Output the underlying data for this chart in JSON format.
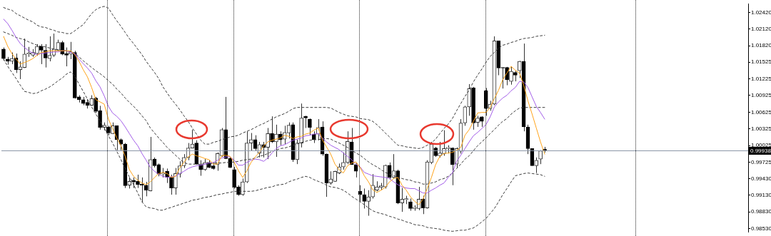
{
  "chart_data": {
    "type": "candlestick",
    "categories": [
      null,
      null,
      null,
      null,
      null,
      null,
      null,
      null,
      null,
      null,
      null,
      null,
      null,
      null,
      null,
      null,
      null,
      null,
      null,
      null,
      null,
      null,
      null,
      null,
      null,
      null,
      null,
      null,
      null,
      null,
      null,
      null,
      null,
      null,
      null,
      null,
      null,
      null,
      null,
      null,
      null,
      null,
      null,
      null,
      null,
      null,
      null,
      null,
      null,
      null,
      null,
      null,
      null,
      null,
      null,
      null,
      null,
      null,
      null,
      null,
      null,
      null,
      null,
      null,
      null,
      null,
      null,
      null,
      null,
      null,
      null,
      null,
      null,
      null,
      null,
      null,
      null,
      null,
      null,
      null,
      null,
      null,
      null,
      null,
      null,
      null,
      null,
      null,
      null,
      null,
      null,
      null,
      null,
      null,
      null,
      null,
      null,
      null,
      null,
      null,
      null,
      null,
      null,
      null,
      null,
      null,
      null,
      null,
      null,
      null,
      null,
      null,
      null,
      null,
      null,
      null,
      null,
      null,
      null,
      null,
      null,
      null,
      null,
      null,
      null,
      null,
      null,
      null,
      null,
      null,
      null,
      null,
      null,
      null,
      null,
      null,
      null,
      null,
      null,
      null,
      null,
      null,
      null,
      null,
      null,
      null,
      null,
      null,
      null,
      null,
      null,
      null,
      null,
      null,
      null,
      null,
      null,
      null,
      null,
      null,
      null,
      null,
      null,
      null,
      null,
      null,
      null,
      null,
      null,
      null,
      null,
      null,
      null,
      null,
      null,
      null,
      null,
      null
    ],
    "ohlc": [
      [
        1.0176,
        1.0179,
        1.0155,
        1.0159
      ],
      [
        1.0158,
        1.0162,
        1.0148,
        1.0154
      ],
      [
        1.0154,
        1.017,
        1.0149,
        1.0159
      ],
      [
        1.016,
        1.0168,
        1.0133,
        1.0139
      ],
      [
        1.0139,
        1.0154,
        1.0122,
        1.0144
      ],
      [
        1.0143,
        1.0195,
        1.0142,
        1.0167
      ],
      [
        1.0167,
        1.018,
        1.0162,
        1.0169
      ],
      [
        1.0165,
        1.0176,
        1.0162,
        1.017
      ],
      [
        1.0168,
        1.0185,
        1.0164,
        1.0181
      ],
      [
        1.0181,
        1.0185,
        1.0149,
        1.0174
      ],
      [
        1.0174,
        1.0185,
        1.0143,
        1.016
      ],
      [
        1.0159,
        1.0199,
        1.0154,
        1.0165
      ],
      [
        1.0165,
        1.0204,
        1.0162,
        1.0176
      ],
      [
        1.0174,
        1.0193,
        1.0173,
        1.0188
      ],
      [
        1.0188,
        1.0191,
        1.0165,
        1.0167
      ],
      [
        1.0168,
        1.0179,
        1.0145,
        1.0165
      ],
      [
        1.0167,
        1.0189,
        1.0158,
        1.0171
      ],
      [
        1.017,
        1.0173,
        1.0087,
        1.0088
      ],
      [
        1.009,
        1.0093,
        1.008,
        1.0085
      ],
      [
        1.0085,
        1.009,
        1.0075,
        1.0078
      ],
      [
        1.008,
        1.0086,
        1.0069,
        1.0075
      ],
      [
        1.0075,
        1.0093,
        1.0074,
        1.0087
      ],
      [
        1.0088,
        1.009,
        1.0061,
        1.0064
      ],
      [
        1.0065,
        1.0074,
        1.0031,
        1.0035
      ],
      [
        1.0035,
        1.0044,
        1.003,
        1.0039
      ],
      [
        1.0036,
        1.0038,
        1.0021,
        1.0025
      ],
      [
        1.0024,
        1.0044,
        1.0023,
        1.0038
      ],
      [
        1.0038,
        1.0038,
        0.9994,
        1.0013
      ],
      [
        1.0013,
        1.0015,
        0.9994,
        1.0005
      ],
      [
        1.0005,
        1.0007,
        0.9926,
        0.993
      ],
      [
        0.9931,
        0.9945,
        0.9925,
        0.9938
      ],
      [
        0.994,
        0.9945,
        0.9926,
        0.9937
      ],
      [
        0.9938,
        0.995,
        0.9926,
        0.9932
      ],
      [
        0.9933,
        0.9945,
        0.99,
        0.9931
      ],
      [
        0.9931,
        0.9937,
        0.9911,
        0.9922
      ],
      [
        0.9921,
        1.0018,
        0.992,
        0.9977
      ],
      [
        0.9978,
        0.9981,
        0.9963,
        0.9966
      ],
      [
        0.9968,
        0.997,
        0.9947,
        0.9951
      ],
      [
        0.9951,
        0.9962,
        0.9945,
        0.9953
      ],
      [
        0.9956,
        0.9961,
        0.9935,
        0.9945
      ],
      [
        0.9945,
        0.995,
        0.9914,
        0.9926
      ],
      [
        0.9926,
        0.9962,
        0.9914,
        0.9952
      ],
      [
        0.9951,
        0.9974,
        0.9945,
        0.9966
      ],
      [
        0.9966,
        0.9987,
        0.9962,
        0.9981
      ],
      [
        0.9981,
        1.0007,
        0.9976,
        0.9998
      ],
      [
        0.9998,
        1.0031,
        0.9998,
        1.0005
      ],
      [
        1.0007,
        1.0012,
        0.9968,
        0.9969
      ],
      [
        0.9968,
        0.9976,
        0.9948,
        0.9959
      ],
      [
        0.9959,
        0.9978,
        0.9957,
        0.9972
      ],
      [
        0.9972,
        0.9976,
        0.9962,
        0.9963
      ],
      [
        0.9966,
        0.9972,
        0.9959,
        0.9961
      ],
      [
        0.9968,
        0.999,
        0.9957,
        0.9988
      ],
      [
        0.9984,
        1.0034,
        0.9982,
        1.0031
      ],
      [
        1.0031,
        1.009,
        0.9978,
        0.9979
      ],
      [
        0.9979,
        0.9981,
        0.9962,
        0.9963
      ],
      [
        0.9959,
        0.9964,
        0.9925,
        0.9927
      ],
      [
        0.9928,
        0.9931,
        0.9912,
        0.9914
      ],
      [
        0.9914,
        0.9943,
        0.9912,
        0.9937
      ],
      [
        0.9937,
        1.0028,
        0.9935,
        1.0007
      ],
      [
        1.0007,
        1.0025,
        0.9993,
        1.0013
      ],
      [
        1.0013,
        1.0021,
        0.9993,
        0.9997
      ],
      [
        0.9989,
        1.0009,
        0.9981,
        1.0004
      ],
      [
        1.0004,
        1.0009,
        0.9981,
        0.9999
      ],
      [
        0.9999,
        1.0034,
        0.9978,
        1.0024
      ],
      [
        1.0024,
        1.0055,
        1.0007,
        1.0009
      ],
      [
        1.0009,
        1.004,
        0.9982,
        1.0023
      ],
      [
        1.0023,
        1.0028,
        1.0003,
        1.0013
      ],
      [
        1.0014,
        1.0038,
        1.0005,
        1.0026
      ],
      [
        1.0025,
        1.0044,
        1.0015,
        1.0039
      ],
      [
        1.004,
        1.0044,
        0.9973,
        0.9977
      ],
      [
        0.9977,
        1.0013,
        0.9969,
        1.0007
      ],
      [
        1.0007,
        1.0078,
        0.9999,
        1.0052
      ],
      [
        1.0055,
        1.0056,
        1.0034,
        1.0052
      ],
      [
        1.005,
        1.0051,
        1.0021,
        1.0035
      ],
      [
        1.0023,
        1.0028,
        1.0007,
        1.0013
      ],
      [
        1.0023,
        1.005,
        1.0012,
        1.0035
      ],
      [
        1.0036,
        1.0046,
        0.9984,
        0.9987
      ],
      [
        0.9987,
        0.9988,
        0.991,
        0.9935
      ],
      [
        0.9935,
        0.9956,
        0.9932,
        0.9942
      ],
      [
        0.9938,
        0.9957,
        0.9937,
        0.9956
      ],
      [
        0.9953,
        0.997,
        0.9951,
        0.9964
      ],
      [
        0.9964,
        0.999,
        0.9959,
        0.9972
      ],
      [
        0.9972,
        1.0028,
        0.9969,
        1.001
      ],
      [
        1.0009,
        1.0034,
        0.9968,
        0.9968
      ],
      [
        0.9968,
        0.9972,
        0.9945,
        0.9956
      ],
      [
        0.992,
        0.9931,
        0.9901,
        0.9914
      ],
      [
        0.9914,
        0.9925,
        0.9889,
        0.9902
      ],
      [
        0.9902,
        0.9922,
        0.9876,
        0.991
      ],
      [
        0.991,
        0.9951,
        0.9907,
        0.9931
      ],
      [
        0.9922,
        0.9938,
        0.992,
        0.9928
      ],
      [
        0.9927,
        0.9935,
        0.9922,
        0.993
      ],
      [
        0.9928,
        0.9968,
        0.9925,
        0.9967
      ],
      [
        0.9967,
        0.9972,
        0.9941,
        0.9945
      ],
      [
        0.9945,
        0.9987,
        0.9943,
        0.9957
      ],
      [
        0.9957,
        0.9959,
        0.9897,
        0.9899
      ],
      [
        0.9899,
        0.9926,
        0.9883,
        0.9906
      ],
      [
        0.9905,
        0.9912,
        0.9897,
        0.9907
      ],
      [
        0.9901,
        0.9907,
        0.9885,
        0.9889
      ],
      [
        0.9889,
        0.9895,
        0.9885,
        0.9891
      ],
      [
        0.9889,
        0.9928,
        0.9886,
        0.9906
      ],
      [
        0.9906,
        0.9912,
        0.9879,
        0.989
      ],
      [
        0.989,
        0.9976,
        0.9889,
        0.9973
      ],
      [
        0.9972,
        1.0009,
        0.9969,
        1.0005
      ],
      [
        0.9998,
        1.0,
        0.9982,
        0.9984
      ],
      [
        0.9984,
        1.0009,
        0.9981,
        0.9989
      ],
      [
        0.9988,
        1.003,
        0.9984,
        0.9997
      ],
      [
        0.9997,
        1.0003,
        0.9988,
        0.9999
      ],
      [
        0.9998,
        0.9999,
        0.9931,
        0.9968
      ],
      [
        0.9969,
        0.9999,
        0.9963,
        0.9997
      ],
      [
        0.9992,
        1.005,
        0.9988,
        1.0043
      ],
      [
        1.0043,
        1.0074,
        1.0038,
        1.0072
      ],
      [
        1.0072,
        1.0113,
        1.0056,
        1.0105
      ],
      [
        1.0106,
        1.0108,
        1.0031,
        1.0043
      ],
      [
        1.0044,
        1.0056,
        1.0036,
        1.0052
      ],
      [
        1.0054,
        1.0055,
        1.0036,
        1.0046
      ],
      [
        1.0101,
        1.0106,
        1.0056,
        1.0069
      ],
      [
        1.0069,
        1.0083,
        1.0065,
        1.0077
      ],
      [
        1.0077,
        1.0199,
        1.0075,
        1.0191
      ],
      [
        1.0191,
        1.0191,
        1.0129,
        1.0142
      ],
      [
        1.0143,
        1.0143,
        1.0105,
        1.0142
      ],
      [
        1.0143,
        1.0144,
        1.0111,
        1.0121
      ],
      [
        1.0118,
        1.0145,
        1.0112,
        1.0136
      ],
      [
        1.0134,
        1.0137,
        1.0118,
        1.0129
      ],
      [
        1.0137,
        1.0155,
        1.0124,
        1.0154
      ],
      [
        1.0154,
        1.0186,
        1.0028,
        1.0036
      ],
      [
        1.0036,
        1.004,
        0.9987,
        0.9997
      ],
      [
        0.9997,
        0.9997,
        0.9966,
        0.9966
      ],
      [
        0.9966,
        0.9981,
        0.9953,
        0.9976
      ],
      [
        0.9978,
        0.9994,
        0.9969,
        0.9993
      ],
      [
        0.9996,
        1.0,
        0.999,
        0.99938
      ],
      null,
      null,
      null,
      null,
      null,
      null,
      null,
      null,
      null,
      null,
      null,
      null,
      null,
      null,
      null,
      null,
      null,
      null,
      null,
      null,
      null,
      null,
      null,
      null,
      null,
      null,
      null,
      null,
      null,
      null,
      null,
      null,
      null,
      null,
      null,
      null,
      null,
      null,
      null,
      null,
      null,
      null,
      null,
      null,
      null,
      null,
      null,
      null
    ],
    "series": [
      {
        "type": "line",
        "color": "#ffa31a",
        "line_style": "solid",
        "values": [
          1.0199,
          1.0181,
          1.0168,
          1.0158,
          1.0149,
          1.0152,
          1.0155,
          1.0159,
          1.0165,
          1.017,
          1.0171,
          1.0173,
          1.0173,
          1.0173,
          1.0173,
          1.0173,
          1.0173,
          1.0166,
          1.0154,
          1.0139,
          1.0126,
          1.0107,
          1.0085,
          1.0081,
          1.0077,
          1.005,
          1.0033,
          1.0016,
          1.0002,
          0.9983,
          0.9959,
          0.9947,
          0.994,
          0.9935,
          0.9932,
          0.9937,
          0.9945,
          0.9952,
          0.9954,
          0.9952,
          0.9945,
          0.9947,
          0.9962,
          0.9972,
          0.9982,
          0.9987,
          0.9984,
          0.9982,
          0.9979,
          0.9977,
          0.9969,
          0.9969,
          0.9984,
          0.9985,
          0.9983,
          0.9972,
          0.9957,
          0.9945,
          0.9957,
          0.9972,
          0.9982,
          0.999,
          1.0002,
          1.0009,
          1.0012,
          1.0014,
          1.0016,
          1.0021,
          1.0019,
          1.0015,
          1.0018,
          1.0019,
          1.0023,
          1.0025,
          1.003,
          1.0034,
          1.0013,
          1.0,
          0.9987,
          0.9969,
          0.9959,
          0.9953,
          0.9966,
          0.9971,
          0.9973,
          0.9963,
          0.9948,
          0.9937,
          0.9923,
          0.9918,
          0.9922,
          0.9927,
          0.9937,
          0.9943,
          0.9945,
          0.9931,
          0.9922,
          0.991,
          0.9902,
          0.9896,
          0.9906,
          0.9925,
          0.9945,
          0.9968,
          0.9983,
          0.9988,
          0.9989,
          0.999,
          0.9994,
          0.9999,
          1.0021,
          1.0031,
          1.0046,
          1.0061,
          1.0062,
          1.0062,
          1.0071,
          1.0087,
          1.0102,
          1.0121,
          1.0133,
          1.0145,
          1.0138,
          1.0133,
          1.0111,
          1.0083,
          1.0059,
          1.0034,
          1.0009,
          0.9987,
          null,
          null,
          null,
          null,
          null,
          null,
          null,
          null,
          null,
          null,
          null,
          null,
          null,
          null,
          null,
          null,
          null,
          null,
          null,
          null,
          null,
          null,
          null,
          null,
          null,
          null,
          null,
          null,
          null,
          null,
          null,
          null,
          null,
          null,
          null,
          null,
          null,
          null,
          null,
          null,
          null,
          null,
          null,
          null,
          null,
          null,
          null,
          null
        ]
      },
      {
        "type": "line",
        "color": "#a35ee8",
        "line_style": "solid",
        "values": [
          1.023,
          1.0222,
          1.021,
          1.0197,
          1.0186,
          1.0179,
          1.0173,
          1.0169,
          1.0166,
          1.0168,
          1.0169,
          1.017,
          1.0171,
          1.0171,
          1.0173,
          1.0173,
          1.017,
          1.0168,
          1.0158,
          1.015,
          1.0142,
          1.0133,
          1.0119,
          1.0108,
          1.0092,
          1.0073,
          1.0061,
          1.0055,
          1.0047,
          1.0036,
          1.0024,
          1.0012,
          1.0002,
          0.9988,
          0.9976,
          0.9963,
          0.9956,
          0.9951,
          0.9947,
          0.9945,
          0.9946,
          0.9947,
          0.9952,
          0.9956,
          0.9961,
          0.9964,
          0.9966,
          0.9967,
          0.9969,
          0.9971,
          0.9972,
          0.9976,
          0.998,
          0.9982,
          0.9982,
          0.9976,
          0.9967,
          0.9967,
          0.9972,
          0.9976,
          0.9978,
          0.9977,
          0.9974,
          0.998,
          0.9989,
          0.9997,
          1.0002,
          1.0004,
          1.0008,
          1.0012,
          1.0014,
          1.0016,
          1.002,
          1.0021,
          1.0023,
          1.0024,
          1.0016,
          1.0009,
          1.0003,
          0.9999,
          0.9995,
          0.9989,
          0.9983,
          0.9977,
          0.9969,
          0.9964,
          0.9954,
          0.9951,
          0.9948,
          0.9947,
          0.9946,
          0.9945,
          0.9943,
          0.9937,
          0.9932,
          0.9928,
          0.9926,
          0.9925,
          0.9925,
          0.9921,
          0.9917,
          0.9917,
          0.9922,
          0.9926,
          0.9931,
          0.9935,
          0.9945,
          0.9953,
          0.9974,
          0.9985,
          0.9997,
          1.0009,
          1.002,
          1.0026,
          1.0033,
          1.004,
          1.0054,
          1.0072,
          1.0081,
          1.0088,
          1.0093,
          1.0101,
          1.0107,
          1.0118,
          1.0117,
          1.0107,
          1.009,
          1.0073,
          1.0062,
          1.005,
          null,
          null,
          null,
          null,
          null,
          null,
          null,
          null,
          null,
          null,
          null,
          null,
          null,
          null,
          null,
          null,
          null,
          null,
          null,
          null,
          null,
          null,
          null,
          null,
          null,
          null,
          null,
          null,
          null,
          null,
          null,
          null,
          null,
          null,
          null,
          null,
          null,
          null,
          null,
          null,
          null,
          null,
          null,
          null,
          null,
          null,
          null,
          null
        ]
      },
      {
        "type": "line",
        "color": "#3c3c3c",
        "line_style": "dashed",
        "values": [
          1.0251,
          1.0248,
          1.0246,
          1.024,
          1.0236,
          1.0232,
          1.0228,
          1.0225,
          1.0219,
          1.0216,
          1.0215,
          1.0212,
          1.021,
          1.0207,
          1.0206,
          1.0204,
          1.0204,
          1.0209,
          1.0215,
          1.022,
          1.023,
          1.024,
          1.0247,
          1.0251,
          1.0253,
          1.025,
          1.0238,
          1.0227,
          1.0217,
          1.0206,
          1.0195,
          1.0186,
          1.0176,
          1.0166,
          1.0154,
          1.0144,
          1.0134,
          1.0123,
          1.0108,
          1.0097,
          1.0086,
          1.0077,
          1.0067,
          1.0056,
          1.0046,
          1.0034,
          1.0023,
          1.0012,
          1.0005,
          1.0005,
          1.0008,
          1.001,
          1.0013,
          1.0015,
          1.0018,
          1.0019,
          1.0021,
          1.0025,
          1.0028,
          1.0031,
          1.0035,
          1.0039,
          1.0042,
          1.0046,
          1.005,
          1.0054,
          1.0057,
          1.006,
          1.0064,
          1.0069,
          1.0071,
          1.0071,
          1.0071,
          1.0071,
          1.0071,
          1.0071,
          1.0071,
          1.0071,
          1.007,
          1.0066,
          1.0062,
          1.0059,
          1.0056,
          1.0055,
          1.0054,
          1.0051,
          1.005,
          1.0049,
          1.0046,
          1.004,
          1.0033,
          1.0025,
          1.0018,
          1.001,
          1.0003,
          1.0002,
          1.0,
          0.9999,
          0.9998,
          0.9997,
          0.9999,
          1.0003,
          1.0007,
          1.0014,
          1.0024,
          1.0033,
          1.0041,
          1.0051,
          1.0065,
          1.0078,
          1.0091,
          1.0102,
          1.0117,
          1.0129,
          1.014,
          1.0152,
          1.0163,
          1.017,
          1.0178,
          1.0183,
          1.0185,
          1.0188,
          1.019,
          1.0193,
          1.0195,
          1.0196,
          1.0197,
          1.0199,
          1.02,
          1.0201,
          null,
          null,
          null,
          null,
          null,
          null,
          null,
          null,
          null,
          null,
          null,
          null,
          null,
          null,
          null,
          null,
          null,
          null,
          null,
          null,
          null,
          null,
          null,
          null,
          null,
          null,
          null,
          null,
          null,
          null,
          null,
          null,
          null,
          null,
          null,
          null,
          null,
          null,
          null,
          null,
          null,
          null,
          null,
          null,
          null,
          null,
          null,
          null
        ]
      },
      {
        "type": "line",
        "color": "#3c3c3c",
        "line_style": "dashed",
        "values": [
          1.0207,
          1.0204,
          1.0201,
          1.0197,
          1.0195,
          1.0193,
          1.0189,
          1.0186,
          1.0183,
          1.0181,
          1.018,
          1.0178,
          1.0176,
          1.0175,
          1.0174,
          1.0173,
          1.0171,
          1.0168,
          1.0162,
          1.0155,
          1.0149,
          1.0143,
          1.0137,
          1.0132,
          1.0126,
          1.0119,
          1.0113,
          1.0104,
          1.0097,
          1.0088,
          1.008,
          1.0073,
          1.0065,
          1.0056,
          1.0047,
          1.0034,
          1.0025,
          1.0016,
          1.0008,
          0.9999,
          0.9992,
          0.9985,
          0.9978,
          0.9972,
          0.9969,
          0.9969,
          0.9969,
          0.9969,
          0.9969,
          0.9969,
          0.9971,
          0.9971,
          0.9971,
          0.9972,
          0.9972,
          0.9973,
          0.9974,
          0.9976,
          0.9977,
          0.9978,
          0.998,
          0.9983,
          0.9985,
          0.9988,
          0.9992,
          0.9994,
          0.9997,
          0.9998,
          1.0,
          1.0003,
          1.0005,
          1.0008,
          1.001,
          1.0012,
          1.0013,
          1.0013,
          1.0014,
          1.0015,
          1.0014,
          1.001,
          1.0007,
          1.0003,
          0.9999,
          0.9994,
          0.9989,
          0.9985,
          0.9979,
          0.9973,
          0.9968,
          0.9964,
          0.9959,
          0.9954,
          0.9951,
          0.9948,
          0.9946,
          0.9943,
          0.9941,
          0.994,
          0.9937,
          0.9936,
          0.9933,
          0.9933,
          0.9935,
          0.9937,
          0.9941,
          0.9943,
          0.9947,
          0.9953,
          0.9961,
          0.9969,
          0.9978,
          0.9984,
          0.9993,
          1.0002,
          1.0009,
          1.0016,
          1.0024,
          1.0031,
          1.0039,
          1.0046,
          1.0051,
          1.0059,
          1.0065,
          1.007,
          1.0071,
          1.0071,
          1.0071,
          1.0071,
          1.0071,
          1.0071,
          null,
          null,
          null,
          null,
          null,
          null,
          null,
          null,
          null,
          null,
          null,
          null,
          null,
          null,
          null,
          null,
          null,
          null,
          null,
          null,
          null,
          null,
          null,
          null,
          null,
          null,
          null,
          null,
          null,
          null,
          null,
          null,
          null,
          null,
          null,
          null,
          null,
          null,
          null,
          null,
          null,
          null,
          null,
          null,
          null,
          null,
          null,
          null
        ]
      },
      {
        "type": "line",
        "color": "#3c3c3c",
        "line_style": "dashed",
        "values": [
          1.0158,
          1.0145,
          1.0134,
          1.0123,
          1.0111,
          1.01,
          1.0098,
          1.0096,
          1.0097,
          1.0101,
          1.0104,
          1.0108,
          1.0113,
          1.0119,
          1.0124,
          1.0131,
          1.0135,
          1.0127,
          1.0113,
          1.01,
          1.0086,
          1.0072,
          1.0059,
          1.0047,
          1.0034,
          1.002,
          1.0007,
          0.9992,
          0.9977,
          0.9961,
          0.9946,
          0.9932,
          0.9917,
          0.9901,
          0.9892,
          0.989,
          0.9889,
          0.9886,
          0.9886,
          0.9889,
          0.9891,
          0.9894,
          0.9896,
          0.9899,
          0.9901,
          0.9904,
          0.9905,
          0.9907,
          0.9909,
          0.991,
          0.9912,
          0.9914,
          0.9915,
          0.9917,
          0.9918,
          0.992,
          0.992,
          0.992,
          0.992,
          0.992,
          0.9921,
          0.9923,
          0.9925,
          0.9927,
          0.9928,
          0.9931,
          0.9932,
          0.9933,
          0.9937,
          0.994,
          0.9942,
          0.9945,
          0.9947,
          0.9945,
          0.9941,
          0.9938,
          0.9935,
          0.9931,
          0.9928,
          0.9927,
          0.9925,
          0.9922,
          0.9917,
          0.9911,
          0.9906,
          0.9901,
          0.9896,
          0.989,
          0.9885,
          0.9882,
          0.988,
          0.9878,
          0.9875,
          0.9873,
          0.987,
          0.9868,
          0.9865,
          0.9863,
          0.986,
          0.9859,
          0.9858,
          0.9855,
          0.9854,
          0.9853,
          0.9852,
          0.985,
          0.9849,
          0.9848,
          0.9849,
          0.985,
          0.985,
          0.9852,
          0.9854,
          0.9859,
          0.9865,
          0.9871,
          0.988,
          0.9889,
          0.9901,
          0.9914,
          0.9925,
          0.9937,
          0.9948,
          0.995,
          0.9952,
          0.9953,
          0.9952,
          0.9951,
          0.995,
          0.9947,
          null,
          null,
          null,
          null,
          null,
          null,
          null,
          null,
          null,
          null,
          null,
          null,
          null,
          null,
          null,
          null,
          null,
          null,
          null,
          null,
          null,
          null,
          null,
          null,
          null,
          null,
          null,
          null,
          null,
          null,
          null,
          null,
          null,
          null,
          null,
          null,
          null,
          null,
          null,
          null,
          null,
          null,
          null,
          null,
          null,
          null,
          null,
          null
        ]
      }
    ],
    "ylim": [
      0.9847,
      1.0257
    ],
    "yticks": [
      {
        "value": 1.0242,
        "label": "1.02420"
      },
      {
        "value": 1.0212,
        "label": "1.02120"
      },
      {
        "value": 1.0182,
        "label": "1.01820"
      },
      {
        "value": 1.01525,
        "label": "1.01525"
      },
      {
        "value": 1.01225,
        "label": "1.01225"
      },
      {
        "value": 1.00925,
        "label": "1.00925"
      },
      {
        "value": 1.00625,
        "label": "1.00625"
      },
      {
        "value": 1.00325,
        "label": "1.00325"
      },
      {
        "value": 1.00025,
        "label": "1.00025"
      },
      {
        "value": 0.99725,
        "label": "0.99725"
      },
      {
        "value": 0.9943,
        "label": "0.99430"
      },
      {
        "value": 0.9913,
        "label": "0.99130"
      },
      {
        "value": 0.9883,
        "label": "0.98830"
      },
      {
        "value": 0.9853,
        "label": "0.98530"
      }
    ],
    "tick_labels": "y",
    "marker": "none",
    "ref_lines": [
      {
        "axis": "y",
        "value": 0.99938,
        "label": "0.99938",
        "color": "#8c96a8"
      }
    ]
  }
}
